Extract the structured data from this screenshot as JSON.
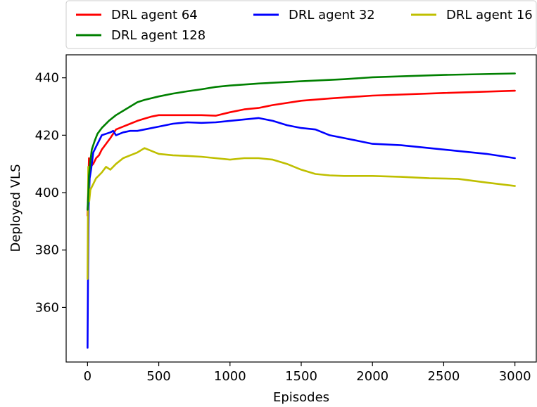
{
  "chart_data": {
    "type": "line",
    "title": "",
    "xlabel": "Episodes",
    "ylabel": "Deployed VLS",
    "xlim": [
      -150,
      3150
    ],
    "ylim": [
      341,
      448
    ],
    "xticks": [
      0,
      500,
      1000,
      1500,
      2000,
      2500,
      3000
    ],
    "yticks": [
      360,
      380,
      400,
      420,
      440
    ],
    "grid": false,
    "legend_position": "top",
    "series": [
      {
        "name": "DRL agent 64",
        "color": "#ff0000",
        "points": [
          [
            0,
            392
          ],
          [
            5,
            401
          ],
          [
            10,
            412
          ],
          [
            20,
            409
          ],
          [
            40,
            410
          ],
          [
            60,
            412
          ],
          [
            80,
            413
          ],
          [
            100,
            415
          ],
          [
            130,
            417
          ],
          [
            160,
            419
          ],
          [
            200,
            422
          ],
          [
            250,
            423
          ],
          [
            300,
            424
          ],
          [
            350,
            425
          ],
          [
            400,
            425.8
          ],
          [
            450,
            426.5
          ],
          [
            500,
            427
          ],
          [
            600,
            427
          ],
          [
            700,
            427
          ],
          [
            800,
            427
          ],
          [
            900,
            426.8
          ],
          [
            1000,
            428
          ],
          [
            1100,
            429
          ],
          [
            1200,
            429.5
          ],
          [
            1300,
            430.5
          ],
          [
            1500,
            432
          ],
          [
            1700,
            432.8
          ],
          [
            2000,
            433.8
          ],
          [
            2500,
            434.7
          ],
          [
            3000,
            435.5
          ]
        ]
      },
      {
        "name": "DRL agent 32",
        "color": "#0000ff",
        "points": [
          [
            0,
            346
          ],
          [
            3,
            369
          ],
          [
            8,
            395
          ],
          [
            15,
            405
          ],
          [
            25,
            408
          ],
          [
            40,
            414
          ],
          [
            60,
            416
          ],
          [
            80,
            418
          ],
          [
            100,
            420
          ],
          [
            130,
            420.5
          ],
          [
            160,
            421
          ],
          [
            180,
            421.5
          ],
          [
            200,
            420
          ],
          [
            250,
            421
          ],
          [
            300,
            421.5
          ],
          [
            350,
            421.5
          ],
          [
            400,
            422
          ],
          [
            500,
            423
          ],
          [
            600,
            424
          ],
          [
            700,
            424.5
          ],
          [
            800,
            424.3
          ],
          [
            900,
            424.5
          ],
          [
            1000,
            425
          ],
          [
            1100,
            425.5
          ],
          [
            1200,
            426
          ],
          [
            1300,
            425
          ],
          [
            1400,
            423.5
          ],
          [
            1500,
            422.5
          ],
          [
            1600,
            422
          ],
          [
            1700,
            420
          ],
          [
            1800,
            419
          ],
          [
            1900,
            418
          ],
          [
            2000,
            417
          ],
          [
            2200,
            416.5
          ],
          [
            2400,
            415.5
          ],
          [
            2600,
            414.5
          ],
          [
            2800,
            413.5
          ],
          [
            3000,
            412
          ]
        ]
      },
      {
        "name": "DRL agent 16",
        "color": "#bfbf00",
        "points": [
          [
            0,
            370
          ],
          [
            5,
            409
          ],
          [
            12,
            397
          ],
          [
            20,
            401
          ],
          [
            40,
            403
          ],
          [
            60,
            405
          ],
          [
            80,
            406
          ],
          [
            100,
            407
          ],
          [
            130,
            409
          ],
          [
            160,
            408
          ],
          [
            200,
            410
          ],
          [
            250,
            412
          ],
          [
            300,
            413
          ],
          [
            350,
            414
          ],
          [
            400,
            415.5
          ],
          [
            450,
            414.5
          ],
          [
            500,
            413.5
          ],
          [
            600,
            413
          ],
          [
            700,
            412.8
          ],
          [
            800,
            412.5
          ],
          [
            900,
            412
          ],
          [
            1000,
            411.5
          ],
          [
            1100,
            412
          ],
          [
            1200,
            412
          ],
          [
            1300,
            411.5
          ],
          [
            1400,
            410
          ],
          [
            1500,
            408
          ],
          [
            1600,
            406.5
          ],
          [
            1700,
            406
          ],
          [
            1800,
            405.8
          ],
          [
            2000,
            405.8
          ],
          [
            2200,
            405.5
          ],
          [
            2400,
            405
          ],
          [
            2600,
            404.8
          ],
          [
            2800,
            403.5
          ],
          [
            3000,
            402.3
          ]
        ]
      },
      {
        "name": "DRL agent 128",
        "color": "#008000",
        "points": [
          [
            0,
            394
          ],
          [
            5,
            399
          ],
          [
            10,
            406
          ],
          [
            20,
            411
          ],
          [
            30,
            415
          ],
          [
            50,
            418
          ],
          [
            70,
            420.5
          ],
          [
            100,
            422.5
          ],
          [
            150,
            425
          ],
          [
            200,
            427
          ],
          [
            250,
            428.5
          ],
          [
            300,
            430
          ],
          [
            350,
            431.5
          ],
          [
            400,
            432.3
          ],
          [
            500,
            433.5
          ],
          [
            600,
            434.5
          ],
          [
            700,
            435.3
          ],
          [
            800,
            436
          ],
          [
            900,
            436.8
          ],
          [
            1000,
            437.3
          ],
          [
            1200,
            438
          ],
          [
            1500,
            438.8
          ],
          [
            1800,
            439.5
          ],
          [
            2000,
            440.2
          ],
          [
            2500,
            441
          ],
          [
            3000,
            441.5
          ]
        ]
      }
    ]
  }
}
